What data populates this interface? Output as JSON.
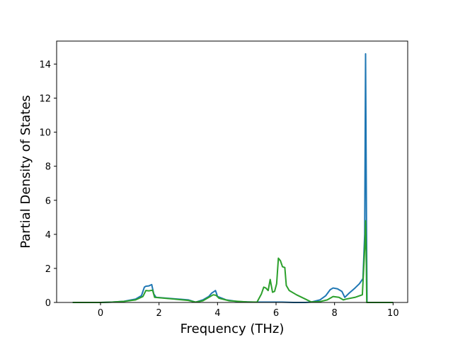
{
  "chart_data": {
    "type": "line",
    "title": "",
    "xlabel": "Frequency (THz)",
    "ylabel": "Partial Density of States",
    "xlim": [
      -1.5,
      10.5
    ],
    "ylim": [
      0,
      15.35
    ],
    "xticks": [
      0,
      2,
      4,
      6,
      8,
      10
    ],
    "xtick_labels": [
      "0",
      "2",
      "4",
      "6",
      "8",
      "10"
    ],
    "yticks": [
      0,
      2,
      4,
      6,
      8,
      10,
      12,
      14
    ],
    "ytick_labels": [
      "0",
      "2",
      "4",
      "6",
      "8",
      "10",
      "12",
      "14"
    ],
    "grid": false,
    "legend": "none",
    "series": [
      {
        "color": "#1f77b4",
        "points": [
          [
            -0.95,
            0.0
          ],
          [
            0.0,
            0.0
          ],
          [
            0.4,
            0.02
          ],
          [
            0.8,
            0.07
          ],
          [
            1.2,
            0.2
          ],
          [
            1.4,
            0.4
          ],
          [
            1.5,
            0.9
          ],
          [
            1.55,
            0.95
          ],
          [
            1.65,
            0.97
          ],
          [
            1.75,
            1.05
          ],
          [
            1.82,
            0.5
          ],
          [
            1.9,
            0.3
          ],
          [
            2.5,
            0.22
          ],
          [
            3.0,
            0.15
          ],
          [
            3.25,
            0.02
          ],
          [
            3.5,
            0.15
          ],
          [
            3.7,
            0.35
          ],
          [
            3.8,
            0.55
          ],
          [
            3.93,
            0.7
          ],
          [
            4.0,
            0.35
          ],
          [
            4.3,
            0.15
          ],
          [
            4.7,
            0.05
          ],
          [
            5.2,
            0.02
          ],
          [
            5.8,
            0.02
          ],
          [
            6.2,
            0.02
          ],
          [
            6.6,
            0.0
          ],
          [
            7.0,
            0.0
          ],
          [
            7.2,
            0.02
          ],
          [
            7.5,
            0.15
          ],
          [
            7.7,
            0.4
          ],
          [
            7.85,
            0.75
          ],
          [
            7.95,
            0.85
          ],
          [
            8.1,
            0.8
          ],
          [
            8.25,
            0.65
          ],
          [
            8.35,
            0.3
          ],
          [
            8.5,
            0.55
          ],
          [
            8.7,
            0.85
          ],
          [
            8.85,
            1.1
          ],
          [
            8.97,
            1.4
          ],
          [
            9.03,
            4.0
          ],
          [
            9.06,
            14.6
          ],
          [
            9.09,
            5.0
          ],
          [
            9.11,
            0.0
          ],
          [
            10.0,
            0.0
          ]
        ]
      },
      {
        "color": "#2ca02c",
        "points": [
          [
            -0.95,
            0.0
          ],
          [
            0.0,
            0.0
          ],
          [
            0.4,
            0.02
          ],
          [
            0.8,
            0.06
          ],
          [
            1.2,
            0.15
          ],
          [
            1.45,
            0.35
          ],
          [
            1.55,
            0.7
          ],
          [
            1.65,
            0.68
          ],
          [
            1.78,
            0.72
          ],
          [
            1.85,
            0.3
          ],
          [
            2.5,
            0.2
          ],
          [
            3.0,
            0.12
          ],
          [
            3.25,
            0.02
          ],
          [
            3.5,
            0.1
          ],
          [
            3.75,
            0.35
          ],
          [
            3.85,
            0.45
          ],
          [
            3.95,
            0.42
          ],
          [
            4.05,
            0.25
          ],
          [
            4.4,
            0.1
          ],
          [
            5.0,
            0.03
          ],
          [
            5.35,
            0.02
          ],
          [
            5.5,
            0.5
          ],
          [
            5.58,
            0.9
          ],
          [
            5.65,
            0.85
          ],
          [
            5.73,
            0.7
          ],
          [
            5.8,
            1.35
          ],
          [
            5.88,
            0.6
          ],
          [
            5.95,
            0.65
          ],
          [
            6.02,
            1.1
          ],
          [
            6.08,
            2.6
          ],
          [
            6.15,
            2.45
          ],
          [
            6.22,
            2.1
          ],
          [
            6.3,
            2.05
          ],
          [
            6.35,
            1.0
          ],
          [
            6.45,
            0.7
          ],
          [
            6.7,
            0.45
          ],
          [
            7.0,
            0.2
          ],
          [
            7.2,
            0.03
          ],
          [
            7.5,
            0.05
          ],
          [
            7.75,
            0.15
          ],
          [
            7.95,
            0.35
          ],
          [
            8.15,
            0.3
          ],
          [
            8.3,
            0.15
          ],
          [
            8.4,
            0.2
          ],
          [
            8.7,
            0.3
          ],
          [
            8.95,
            0.45
          ],
          [
            9.04,
            3.5
          ],
          [
            9.06,
            4.8
          ],
          [
            9.08,
            3.0
          ],
          [
            9.1,
            0.0
          ],
          [
            10.0,
            0.0
          ]
        ]
      }
    ]
  }
}
